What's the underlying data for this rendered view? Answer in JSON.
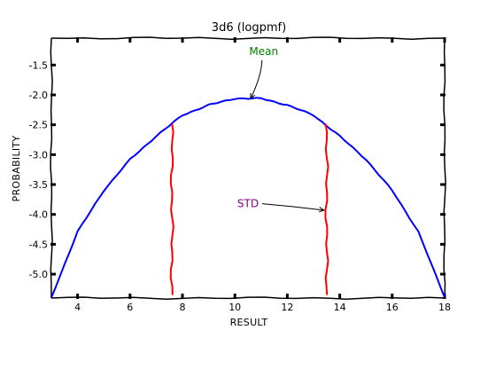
{
  "chart_data": {
    "type": "line",
    "title": "3d6 (logpmf)",
    "xlabel": "RESULT",
    "ylabel": "PROBABILITY",
    "xlim": [
      3,
      18
    ],
    "ylim": [
      -5.4,
      -1.05
    ],
    "xticks": [
      4,
      6,
      8,
      10,
      12,
      14,
      16,
      18
    ],
    "yticks": [
      -1.5,
      -2.0,
      -2.5,
      -3.0,
      -3.5,
      -4.0,
      -4.5,
      -5.0
    ],
    "xtick_labels": [
      "4",
      "6",
      "8",
      "10",
      "12",
      "14",
      "16",
      "18"
    ],
    "ytick_labels": [
      "-1.5",
      "-2.0",
      "-2.5",
      "-3.0",
      "-3.5",
      "-4.0",
      "-4.5",
      "-5.0"
    ],
    "grid": false,
    "series": [
      {
        "color": "#0000ff",
        "x": [
          3,
          4,
          5,
          6,
          7,
          8,
          9,
          10,
          11,
          12,
          13,
          14,
          15,
          16,
          17,
          18
        ],
        "y": [
          -5.39,
          -4.29,
          -3.6,
          -3.08,
          -2.69,
          -2.34,
          -2.17,
          -2.06,
          -2.06,
          -2.17,
          -2.34,
          -2.69,
          -3.08,
          -3.6,
          -4.29,
          -5.39
        ]
      }
    ],
    "std_lines": {
      "color": "#ff0000",
      "x": [
        7.6,
        13.5
      ],
      "y_range": [
        -5.35,
        -2.48
      ]
    },
    "annotations": [
      {
        "id": "mean",
        "text": "Mean",
        "color": "#008000",
        "text_at": [
          11.1,
          -1.33
        ],
        "arrow_to": [
          10.6,
          -2.06
        ]
      },
      {
        "id": "std",
        "text": "STD",
        "color": "#800080",
        "text_at": [
          10.5,
          -3.88
        ],
        "arrow_to": [
          13.4,
          -3.93
        ]
      }
    ]
  }
}
